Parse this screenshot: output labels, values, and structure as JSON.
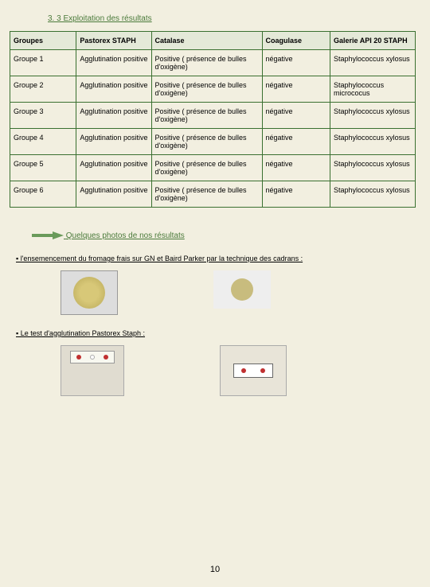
{
  "section_title": "3. 3 Exploitation des résultats",
  "table": {
    "headers": [
      "Groupes",
      "Pastorex STAPH",
      "Catalase",
      "Coagulase",
      "Galerie API 20 STAPH"
    ],
    "rows": [
      [
        "Groupe 1",
        "Agglutination positive",
        "Positive ( présence de bulles d'oxigène)",
        "négative",
        "Staphylococcus xylosus"
      ],
      [
        "Groupe 2",
        "Agglutination positive",
        "Positive ( présence de bulles d'oxigène)",
        "négative",
        "Staphylococcus micrococus"
      ],
      [
        "Groupe 3",
        "Agglutination positive",
        "Positive ( présence de bulles d'oxigène)",
        "négative",
        "Staphylococcus xylosus"
      ],
      [
        "Groupe 4",
        "Agglutination positive",
        "Positive ( présence de bulles d'oxigène)",
        "négative",
        "Staphylococcus xylosus"
      ],
      [
        "Groupe 5",
        "Agglutination positive",
        "Positive ( présence de bulles d'oxigène)",
        "négative",
        "Staphylococcus xylosus"
      ],
      [
        "Groupe 6",
        "Agglutination positive",
        "Positive ( présence de bulles d'oxigène)",
        "négative",
        "Staphylococcus xylosus"
      ]
    ]
  },
  "photos_heading": "Quelques photos de nos résultats",
  "bullet1": "▪ l'ensemencement du fromage frais sur GN et Baird Parker par la technique des cadrans :",
  "bullet2": "▪ Le test d'agglutination Pastorex Staph :",
  "page_number": "10",
  "colors": {
    "border": "#3a7030",
    "header_bg": "#e4e9d8",
    "page_bg": "#f2efe0",
    "link_color": "#4a7a3a",
    "arrow_fill": "#5a8a4a"
  }
}
